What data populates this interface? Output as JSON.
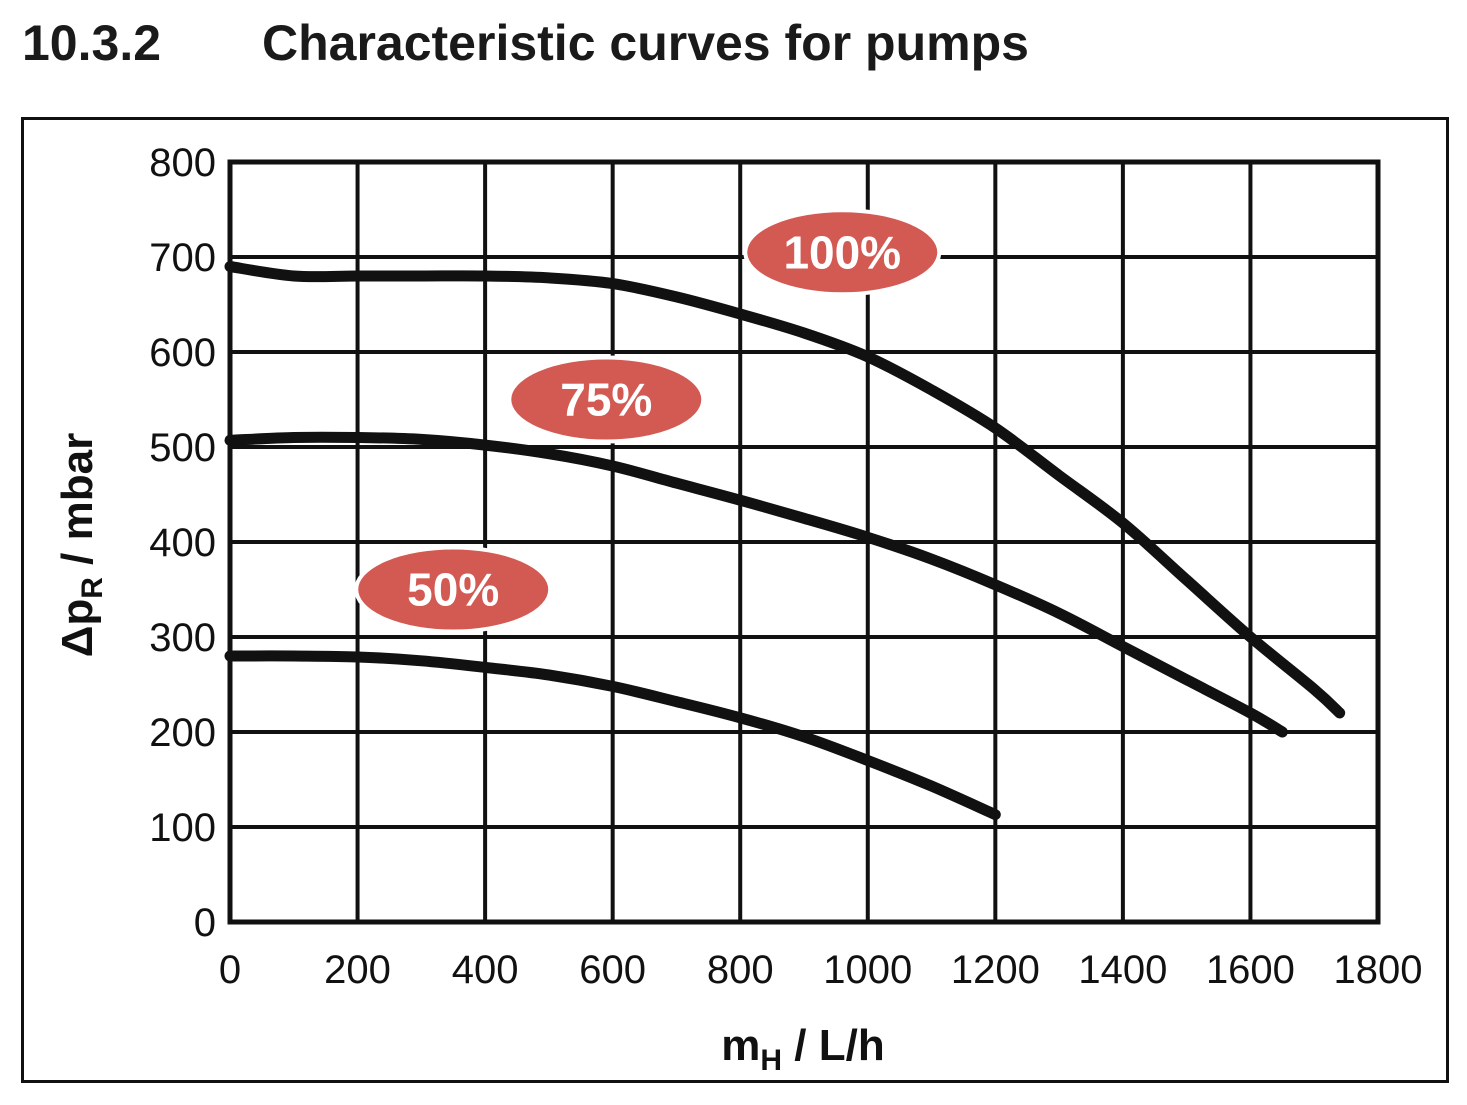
{
  "heading": {
    "number": "10.3.2",
    "title": "Characteristic curves for pumps"
  },
  "colors": {
    "badge": "#d35a52",
    "curve": "#111111",
    "grid": "#111111"
  },
  "chart_data": {
    "type": "line",
    "title": "",
    "xlabel": {
      "main": "m",
      "sub": "H",
      "rest": " / L/h"
    },
    "ylabel": {
      "main": "Δp",
      "sub": "R",
      "rest": "  / mbar"
    },
    "xlim": [
      0,
      1800
    ],
    "ylim": [
      0,
      800
    ],
    "x_ticks": [
      0,
      200,
      400,
      600,
      800,
      1000,
      1200,
      1400,
      1600,
      1800
    ],
    "y_ticks": [
      0,
      100,
      200,
      300,
      400,
      500,
      600,
      700,
      800
    ],
    "x_tick_labels": [
      "0",
      "200",
      "400",
      "600",
      "800",
      "1000",
      "1200",
      "1400",
      "1600",
      "1800"
    ],
    "y_tick_labels": [
      "0",
      "100",
      "200",
      "300",
      "400",
      "500",
      "600",
      "700",
      "800"
    ],
    "grid": true,
    "series": [
      {
        "name": "100%",
        "x": [
          0,
          100,
          200,
          300,
          400,
          500,
          600,
          700,
          800,
          900,
          1000,
          1100,
          1200,
          1300,
          1400,
          1500,
          1600,
          1700,
          1740
        ],
        "y": [
          690,
          680,
          680,
          680,
          680,
          678,
          672,
          658,
          640,
          620,
          595,
          560,
          520,
          470,
          420,
          360,
          300,
          245,
          220
        ]
      },
      {
        "name": "75%",
        "x": [
          0,
          100,
          200,
          300,
          400,
          500,
          600,
          700,
          800,
          900,
          1000,
          1100,
          1200,
          1300,
          1400,
          1500,
          1600,
          1650
        ],
        "y": [
          507,
          510,
          510,
          508,
          502,
          493,
          480,
          462,
          444,
          425,
          405,
          382,
          355,
          325,
          290,
          255,
          220,
          200
        ]
      },
      {
        "name": "50%",
        "x": [
          0,
          100,
          200,
          300,
          400,
          500,
          600,
          700,
          800,
          900,
          1000,
          1100,
          1200
        ],
        "y": [
          280,
          280,
          279,
          275,
          268,
          260,
          248,
          232,
          215,
          195,
          170,
          143,
          113
        ]
      }
    ],
    "annotations": [
      {
        "text": "100%",
        "x": 960,
        "y": 705
      },
      {
        "text": "75%",
        "x": 590,
        "y": 550
      },
      {
        "text": "50%",
        "x": 350,
        "y": 350
      }
    ]
  }
}
